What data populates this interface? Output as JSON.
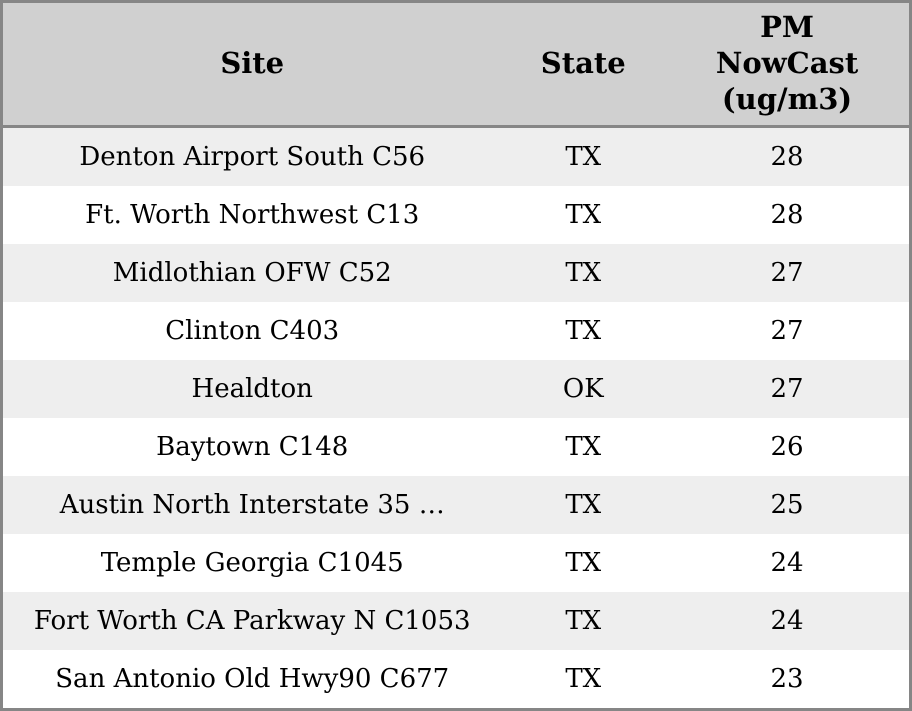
{
  "title": "PM NowCast site readings table",
  "header": {
    "site": "Site",
    "state": "State",
    "pm_nowcast": "PM\nNowCast\n(ug/m3)"
  },
  "colors": {
    "header_bg": "#d0d0d0",
    "row_stripe_bg": "#eeeeee",
    "row_bg": "#ffffff",
    "border": "#868686",
    "text": "#000000"
  },
  "chart_data": {
    "type": "table",
    "columns": [
      "Site",
      "State",
      "PM NowCast (ug/m3)"
    ],
    "rows": [
      [
        "Denton Airport South C56",
        "TX",
        28
      ],
      [
        "Ft. Worth Northwest C13",
        "TX",
        28
      ],
      [
        "Midlothian OFW C52",
        "TX",
        27
      ],
      [
        "Clinton C403",
        "TX",
        27
      ],
      [
        "Healdton",
        "OK",
        27
      ],
      [
        "Baytown C148",
        "TX",
        26
      ],
      [
        "Austin North Interstate 35 …",
        "TX",
        25
      ],
      [
        "Temple Georgia C1045",
        "TX",
        24
      ],
      [
        "Fort Worth CA Parkway N C1053",
        "TX",
        24
      ],
      [
        "San Antonio Old Hwy90 C677",
        "TX",
        23
      ]
    ]
  }
}
